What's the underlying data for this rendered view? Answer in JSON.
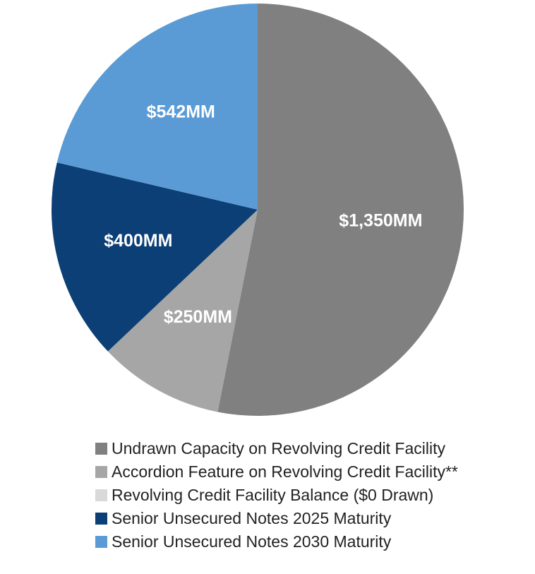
{
  "chart_data": {
    "type": "pie",
    "categories": [
      "Undrawn Capacity on Revolving Credit Facility",
      "Accordion Feature on Revolving Credit Facility**",
      "Revolving Credit Facility Balance ($0 Drawn)",
      "Senior Unsecured Notes 2025 Maturity",
      "Senior Unsecured Notes 2030 Maturity"
    ],
    "values": [
      1350,
      250,
      0,
      400,
      542
    ],
    "value_labels": [
      "$1,350MM",
      "$250MM",
      null,
      "$400MM",
      "$542MM"
    ],
    "colors": [
      "#808080",
      "#a6a6a6",
      "#d9d9d9",
      "#0b3f75",
      "#5b9bd5"
    ],
    "legend": "bottom"
  }
}
